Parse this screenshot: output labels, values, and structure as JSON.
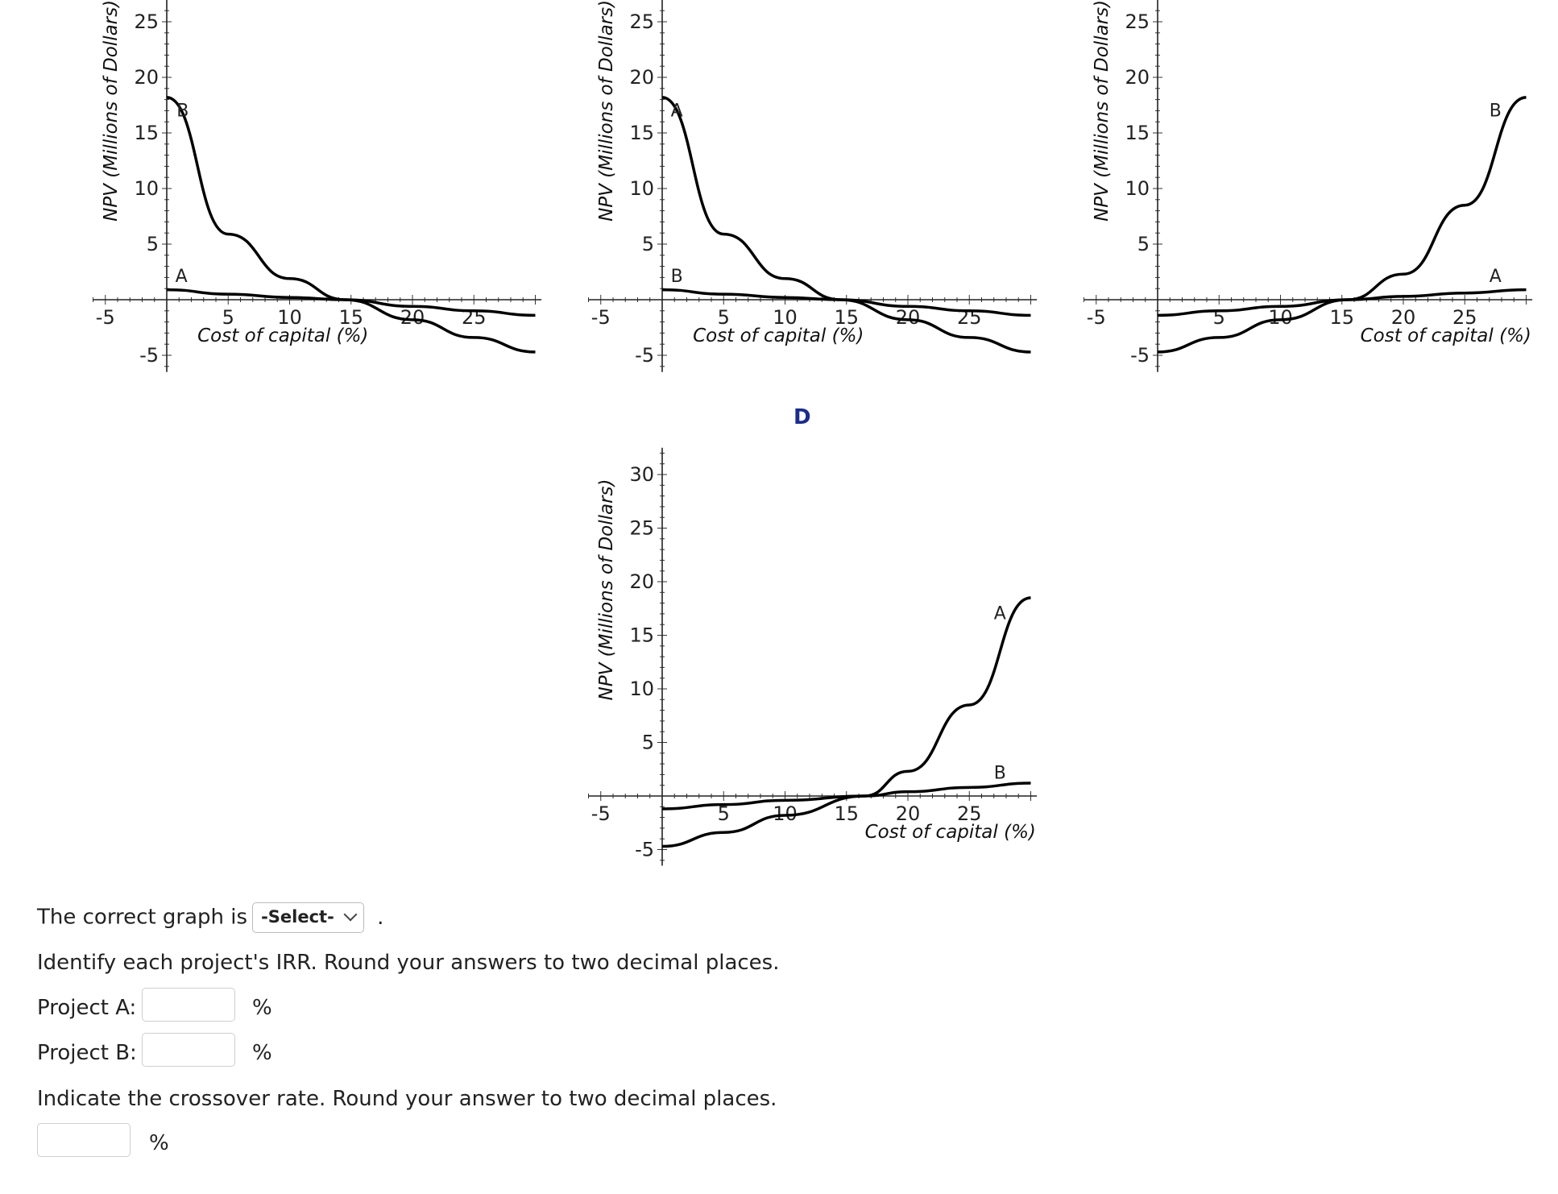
{
  "graphs": [
    {
      "id": "A",
      "letter": "",
      "ylabel": "NPV (Millions of Dollars)",
      "xlabel": "Cost of capital (%)",
      "yticks": [
        "25",
        "20",
        "15",
        "10",
        "5",
        "-5"
      ],
      "xticks": [
        "-5",
        "5",
        "10",
        "15",
        "20",
        "25"
      ],
      "curves": [
        {
          "name": "B",
          "points": [
            [
              0,
              18.2
            ],
            [
              5,
              5.9
            ],
            [
              10,
              1.9
            ],
            [
              14.5,
              0.0
            ],
            [
              20,
              -1.8
            ],
            [
              25,
              -3.4
            ],
            [
              30,
              -4.7
            ]
          ]
        },
        {
          "name": "A",
          "points": [
            [
              0,
              0.9
            ],
            [
              5,
              0.5
            ],
            [
              10,
              0.2
            ],
            [
              14.5,
              0.0
            ],
            [
              20,
              -0.6
            ],
            [
              25,
              -1.0
            ],
            [
              30,
              -1.4
            ]
          ]
        }
      ]
    },
    {
      "id": "B",
      "letter": "",
      "ylabel": "NPV (Millions of Dollars)",
      "xlabel": "Cost of capital (%)",
      "yticks": [
        "25",
        "20",
        "15",
        "10",
        "5",
        "-5"
      ],
      "xticks": [
        "-5",
        "5",
        "10",
        "15",
        "20",
        "25"
      ],
      "curves": [
        {
          "name": "A",
          "points": [
            [
              0,
              18.2
            ],
            [
              5,
              5.9
            ],
            [
              10,
              1.9
            ],
            [
              14.5,
              0.0
            ],
            [
              20,
              -1.8
            ],
            [
              25,
              -3.4
            ],
            [
              30,
              -4.7
            ]
          ]
        },
        {
          "name": "B",
          "points": [
            [
              0,
              0.9
            ],
            [
              5,
              0.5
            ],
            [
              10,
              0.2
            ],
            [
              14.5,
              0.0
            ],
            [
              20,
              -0.6
            ],
            [
              25,
              -1.0
            ],
            [
              30,
              -1.4
            ]
          ]
        }
      ]
    },
    {
      "id": "C",
      "letter": "",
      "ylabel": "NPV (Millions of Dollars)",
      "xlabel": "Cost of capital (%)",
      "yticks": [
        "25",
        "20",
        "15",
        "10",
        "5",
        "-5"
      ],
      "xticks": [
        "-5",
        "5",
        "10",
        "15",
        "20",
        "25"
      ],
      "curves": [
        {
          "name": "B",
          "points": [
            [
              0,
              -4.7
            ],
            [
              5,
              -3.4
            ],
            [
              10,
              -1.8
            ],
            [
              15.5,
              0.0
            ],
            [
              20,
              2.3
            ],
            [
              25,
              8.5
            ],
            [
              30,
              18.2
            ]
          ]
        },
        {
          "name": "A",
          "points": [
            [
              0,
              -1.4
            ],
            [
              5,
              -1.0
            ],
            [
              10,
              -0.6
            ],
            [
              15.5,
              0.0
            ],
            [
              20,
              0.3
            ],
            [
              25,
              0.6
            ],
            [
              30,
              0.9
            ]
          ]
        }
      ]
    },
    {
      "id": "D",
      "letter": "D",
      "ylabel": "NPV (Millions of Dollars)",
      "xlabel": "Cost of capital (%)",
      "yticks": [
        "30",
        "25",
        "20",
        "15",
        "10",
        "5",
        "-5"
      ],
      "xticks": [
        "-5",
        "5",
        "10",
        "15",
        "20",
        "25"
      ],
      "curves": [
        {
          "name": "A",
          "points": [
            [
              0,
              -4.7
            ],
            [
              5,
              -3.4
            ],
            [
              10,
              -1.8
            ],
            [
              16.5,
              0.0
            ],
            [
              20,
              2.3
            ],
            [
              25,
              8.5
            ],
            [
              30,
              18.5
            ]
          ]
        },
        {
          "name": "B",
          "points": [
            [
              0,
              -1.2
            ],
            [
              5,
              -0.8
            ],
            [
              10,
              -0.4
            ],
            [
              16.5,
              0.0
            ],
            [
              20,
              0.4
            ],
            [
              25,
              0.8
            ],
            [
              30,
              1.2
            ]
          ]
        }
      ]
    }
  ],
  "question": {
    "graph_prompt": "The correct graph is",
    "select_value": "-Select-",
    "period": ".",
    "irr_prompt": "Identify each project's IRR. Round your answers to two decimal places.",
    "project_a_label": "Project A:",
    "project_b_label": "Project B:",
    "percent": "%",
    "crossover_prompt": "Indicate the crossover rate. Round your answer to two decimal places."
  }
}
